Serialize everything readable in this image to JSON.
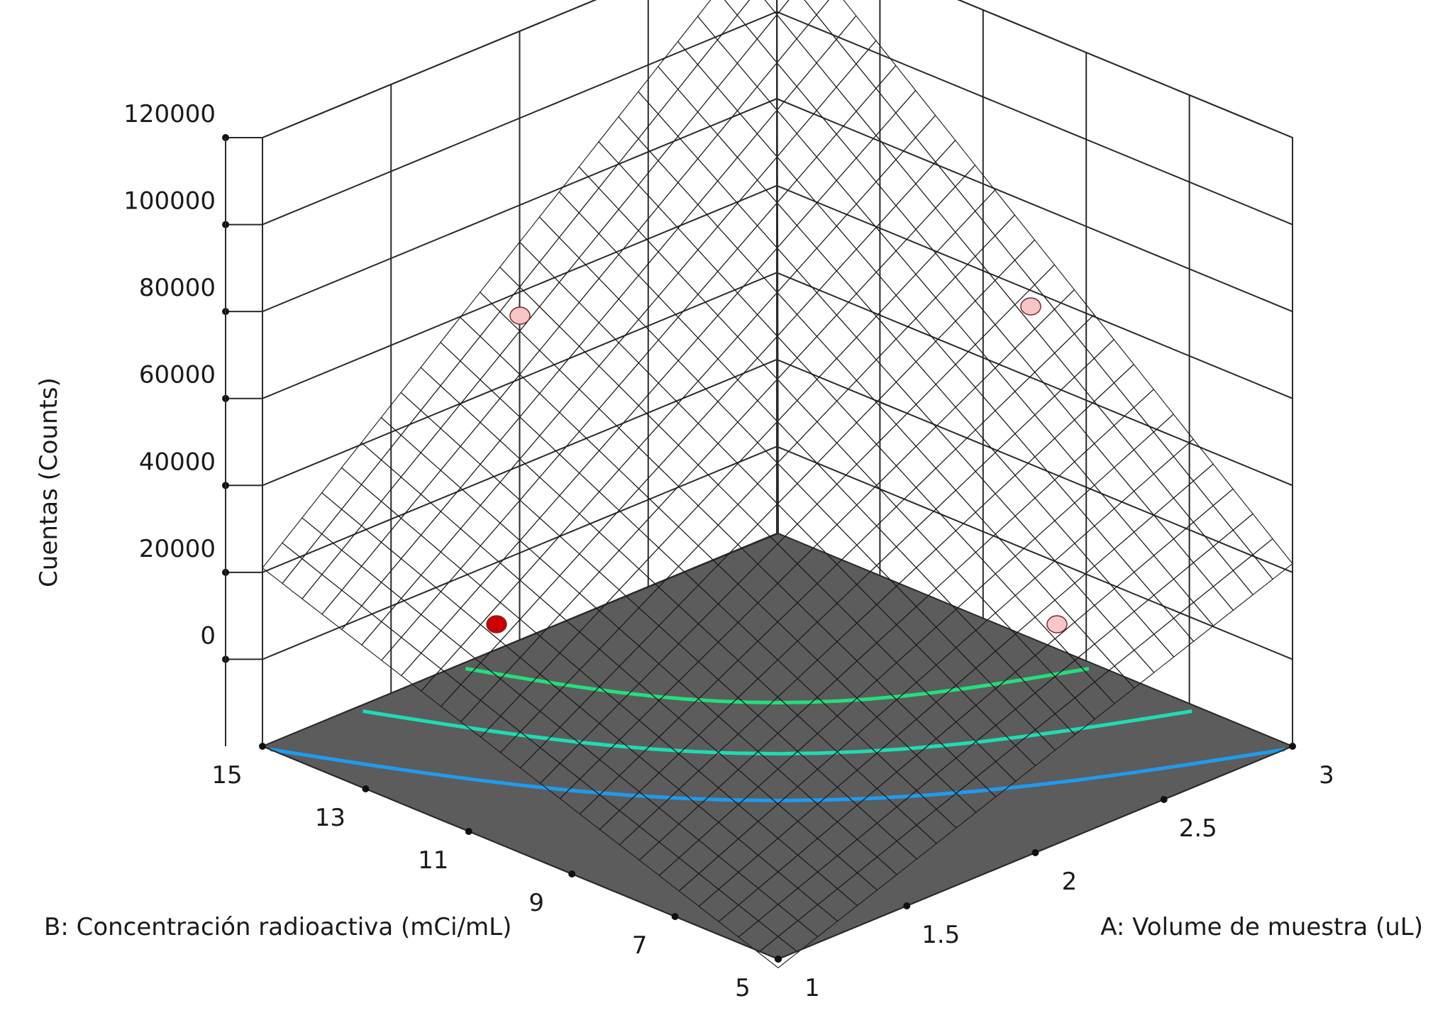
{
  "chart_data": {
    "type": "surface3d",
    "title": "",
    "xlabel": "A: Volume de muestra (uL)",
    "ylabel": "B: Concentración radioactiva (mCi/mL)",
    "zlabel": "Cuentas (Counts)",
    "x_ticks": [
      "1",
      "1.5",
      "2",
      "2.5",
      "3"
    ],
    "y_ticks": [
      "5",
      "7",
      "9",
      "11",
      "13",
      "15"
    ],
    "z_ticks": [
      "0",
      "20000",
      "40000",
      "60000",
      "80000",
      "100000",
      "120000"
    ],
    "xlim": [
      1,
      3
    ],
    "ylim": [
      5,
      15
    ],
    "zlim": [
      -20000,
      120000
    ],
    "surface_corners": {
      "A1_B5": -22000,
      "A3_B5": 22000,
      "A1_B15": 21000,
      "A3_B15": 122000
    },
    "surface_colormap": [
      "#3b3bff",
      "#31c8ff",
      "#3ee89a",
      "#47e847",
      "#f2e13c",
      "#f59a2e",
      "#f04a2a"
    ],
    "floor_color": "#5c5c5c",
    "contour_lines": [
      {
        "color": "#1e9bf0"
      },
      {
        "color": "#1edcb4"
      },
      {
        "color": "#22e07c"
      }
    ],
    "design_points": [
      {
        "A": 1,
        "B": 15,
        "color": "#cc0000"
      },
      {
        "A": 3,
        "B": 5,
        "color": "#f7c6c6"
      },
      {
        "A": 3,
        "B": 15,
        "color": "#f7c6c6"
      },
      {
        "A": 1,
        "B": 5,
        "color": "#f7c6c6"
      }
    ]
  }
}
